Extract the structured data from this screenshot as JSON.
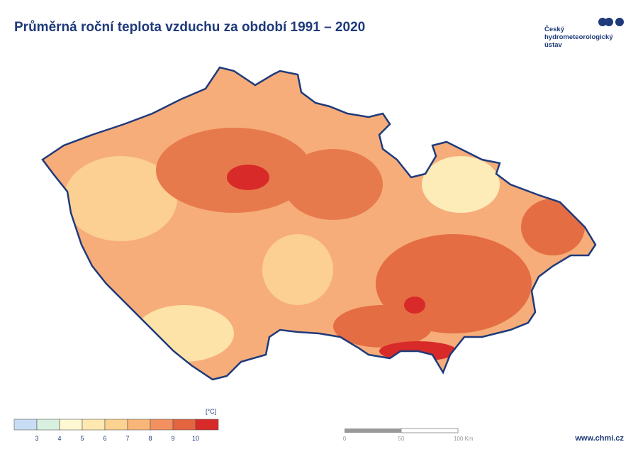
{
  "header": {
    "title": "Průměrná roční teplota vzduchu za období 1991 – 2020",
    "logo": [
      "Český",
      "hydrometeorologický",
      "ústav"
    ]
  },
  "legend": {
    "unit": "[°C]",
    "colors": [
      "#c9dcf5",
      "#d8f0e0",
      "#fdf8d2",
      "#fde8b0",
      "#fbd28f",
      "#f8b678",
      "#f2915f",
      "#e3643f",
      "#d82a28"
    ],
    "labels": [
      "3",
      "4",
      "5",
      "6",
      "7",
      "8",
      "9",
      "10"
    ]
  },
  "scale": {
    "labels": [
      "0",
      "50",
      "100 Km"
    ]
  },
  "footer": {
    "website": "www.chmi.cz"
  }
}
